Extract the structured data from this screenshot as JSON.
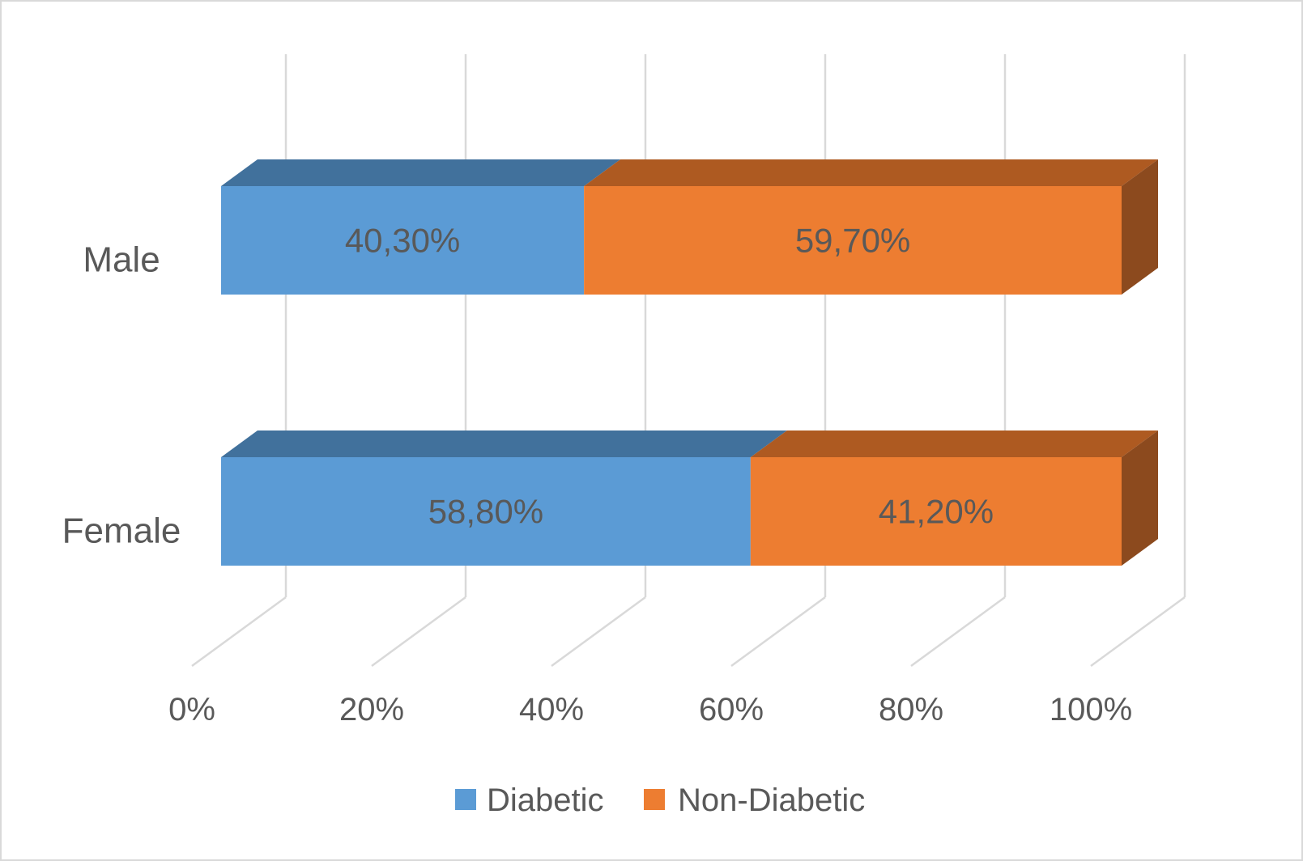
{
  "chart_data": {
    "type": "bar",
    "subtype": "3d-100-percent-stacked-horizontal",
    "title": "",
    "categories": [
      "Male",
      "Female"
    ],
    "series": [
      {
        "name": "Diabetic",
        "values": [
          40.3,
          58.8
        ],
        "labels": [
          "40,30%",
          "58,80%"
        ],
        "color_front": "#5B9BD5",
        "color_top": "#41719C",
        "color_side": "#35608A"
      },
      {
        "name": "Non-Diabetic",
        "values": [
          59.7,
          41.2
        ],
        "labels": [
          "59,70%",
          "41,20%"
        ],
        "color_front": "#ED7D31",
        "color_top": "#AE5A21",
        "color_side": "#8C4A1E"
      }
    ],
    "x_axis": {
      "range": [
        0,
        100
      ],
      "tick_values": [
        0,
        20,
        40,
        60,
        80,
        100
      ],
      "ticks": [
        "0%",
        "20%",
        "40%",
        "60%",
        "80%",
        "100%"
      ]
    },
    "grid": true,
    "legend": {
      "position": "bottom",
      "entries": [
        "Diabetic",
        "Non-Diabetic"
      ]
    },
    "colors": {
      "gridline": "#D9D9D9",
      "text": "#595959",
      "frame_border": "#D9D9D9",
      "background": "#FFFFFF"
    }
  }
}
